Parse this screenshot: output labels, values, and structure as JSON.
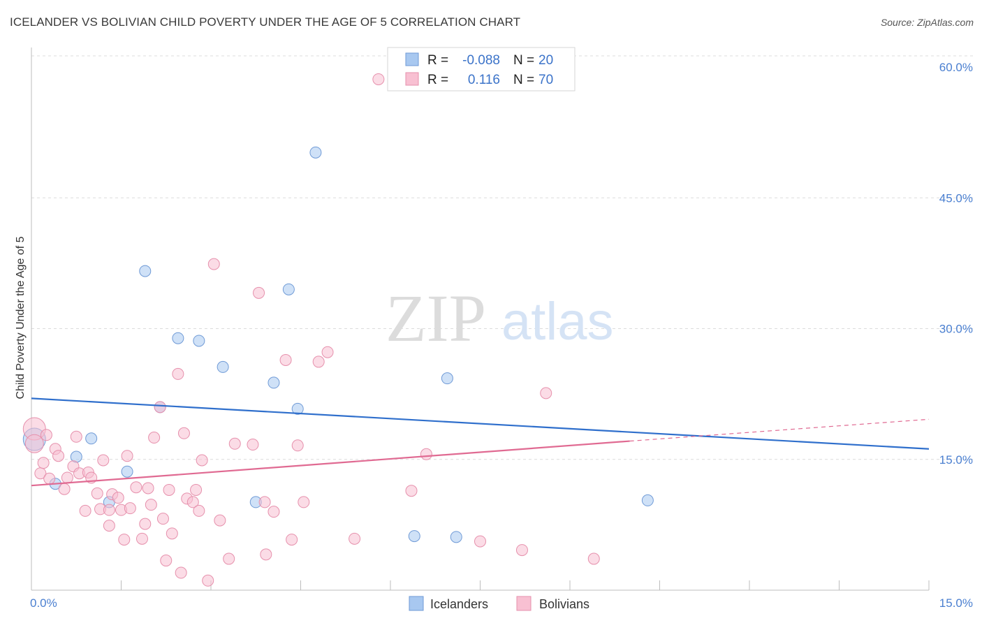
{
  "title": "ICELANDER VS BOLIVIAN CHILD POVERTY UNDER THE AGE OF 5 CORRELATION CHART",
  "source": "Source: ZipAtlas.com",
  "watermark": {
    "zip": "ZIP",
    "atlas": "atlas"
  },
  "legend": {
    "rows": [
      {
        "r_label": "R =",
        "r_value": "-0.088",
        "n_label": "N =",
        "n_value": "20",
        "color": "#a8c8f0",
        "stroke": "#6f9ad6"
      },
      {
        "r_label": "R =",
        "r_value": "0.116",
        "n_label": "N =",
        "n_value": "70",
        "color": "#f8c0d2",
        "stroke": "#e690ac"
      }
    ]
  },
  "bottom_legend": [
    "Icelanders",
    "Bolivians"
  ],
  "chart_data": {
    "type": "scatter",
    "title": "ICELANDER VS BOLIVIAN CHILD POVERTY UNDER THE AGE OF 5 CORRELATION CHART",
    "xlabel": "",
    "ylabel": "Child Poverty Under the Age of 5",
    "xlim": [
      0,
      15
    ],
    "ylim": [
      0,
      60
    ],
    "x_tick_labels": [
      "0.0%",
      "15.0%"
    ],
    "y_ticks": [
      15,
      30,
      45,
      60
    ],
    "y_tick_labels": [
      "15.0%",
      "30.0%",
      "45.0%",
      "60.0%"
    ],
    "grid": true,
    "legend_position": "top-center",
    "series": [
      {
        "name": "Icelanders",
        "color": "#a8c8f0",
        "stroke": "#6f9ad6",
        "line_color": "#2f6fcc",
        "trend": {
          "x": [
            0,
            15
          ],
          "y": [
            22.0,
            16.2
          ]
        },
        "points": [
          [
            0.05,
            17.3,
            3
          ],
          [
            0.4,
            12.2,
            1
          ],
          [
            0.75,
            15.3,
            1
          ],
          [
            1.0,
            17.4,
            1
          ],
          [
            1.3,
            10.1,
            1
          ],
          [
            1.6,
            13.6,
            1
          ],
          [
            1.9,
            36.6,
            1
          ],
          [
            2.15,
            21.0,
            1
          ],
          [
            2.45,
            28.9,
            1
          ],
          [
            2.8,
            28.6,
            1
          ],
          [
            3.2,
            25.6,
            1
          ],
          [
            3.75,
            10.1,
            1
          ],
          [
            4.05,
            23.8,
            1
          ],
          [
            4.3,
            34.5,
            1
          ],
          [
            4.45,
            20.8,
            1
          ],
          [
            4.75,
            50.2,
            1
          ],
          [
            6.4,
            6.2,
            1
          ],
          [
            6.95,
            24.3,
            1
          ],
          [
            7.1,
            6.1,
            1
          ],
          [
            10.3,
            10.3,
            1
          ]
        ]
      },
      {
        "name": "Bolivians",
        "color": "#f8c0d2",
        "stroke": "#e690ac",
        "line_color": "#e06a92",
        "trend": {
          "x": [
            0,
            10.0
          ],
          "y": [
            12.0,
            17.1
          ]
        },
        "trend_dashed": {
          "x": [
            10.0,
            15
          ],
          "y": [
            17.1,
            19.6
          ]
        },
        "points": [
          [
            0.05,
            18.5,
            3
          ],
          [
            0.05,
            16.8,
            2
          ],
          [
            0.15,
            13.4,
            1
          ],
          [
            0.2,
            14.6,
            1
          ],
          [
            0.25,
            17.8,
            1
          ],
          [
            0.3,
            12.8,
            1
          ],
          [
            0.4,
            16.2,
            1
          ],
          [
            0.45,
            15.4,
            1
          ],
          [
            0.55,
            11.6,
            1
          ],
          [
            0.6,
            12.9,
            1
          ],
          [
            0.7,
            14.2,
            1
          ],
          [
            0.75,
            17.6,
            1
          ],
          [
            0.8,
            13.4,
            1
          ],
          [
            0.9,
            9.1,
            1
          ],
          [
            0.95,
            13.5,
            1
          ],
          [
            1.0,
            12.9,
            1
          ],
          [
            1.1,
            11.1,
            1
          ],
          [
            1.15,
            9.3,
            1
          ],
          [
            1.2,
            14.9,
            1
          ],
          [
            1.3,
            7.4,
            1
          ],
          [
            1.35,
            11.0,
            1
          ],
          [
            1.45,
            10.6,
            1
          ],
          [
            1.5,
            9.2,
            1
          ],
          [
            1.55,
            5.8,
            1
          ],
          [
            1.6,
            15.4,
            1
          ],
          [
            1.65,
            9.4,
            1
          ],
          [
            1.75,
            11.8,
            1
          ],
          [
            1.85,
            5.9,
            1
          ],
          [
            1.9,
            7.6,
            1
          ],
          [
            1.95,
            11.7,
            1
          ],
          [
            2.0,
            9.8,
            1
          ],
          [
            2.05,
            17.5,
            1
          ],
          [
            2.15,
            21.0,
            1
          ],
          [
            2.2,
            8.2,
            1
          ],
          [
            2.25,
            3.4,
            1
          ],
          [
            2.3,
            11.5,
            1
          ],
          [
            2.35,
            6.5,
            1
          ],
          [
            2.45,
            24.8,
            1
          ],
          [
            2.5,
            2.0,
            1
          ],
          [
            2.55,
            18.0,
            1
          ],
          [
            2.6,
            10.5,
            1
          ],
          [
            2.7,
            10.1,
            1
          ],
          [
            2.75,
            11.5,
            1
          ],
          [
            2.8,
            9.1,
            1
          ],
          [
            2.85,
            14.9,
            1
          ],
          [
            2.95,
            1.1,
            1
          ],
          [
            3.05,
            37.4,
            1
          ],
          [
            3.15,
            8.0,
            1
          ],
          [
            3.3,
            3.6,
            1
          ],
          [
            3.4,
            16.8,
            1
          ],
          [
            3.7,
            16.7,
            1
          ],
          [
            3.8,
            34.1,
            1
          ],
          [
            3.9,
            10.1,
            1
          ],
          [
            3.92,
            4.1,
            1
          ],
          [
            4.05,
            9.0,
            1
          ],
          [
            4.25,
            26.4,
            1
          ],
          [
            4.35,
            5.8,
            1
          ],
          [
            4.45,
            16.6,
            1
          ],
          [
            4.55,
            10.1,
            1
          ],
          [
            4.8,
            26.2,
            1
          ],
          [
            4.95,
            27.3,
            1
          ],
          [
            5.4,
            5.9,
            1
          ],
          [
            5.8,
            58.6,
            1
          ],
          [
            6.35,
            11.4,
            1
          ],
          [
            6.6,
            15.6,
            1
          ],
          [
            7.5,
            5.6,
            1
          ],
          [
            8.2,
            4.6,
            1
          ],
          [
            8.6,
            22.6,
            1
          ],
          [
            9.4,
            3.6,
            1
          ],
          [
            1.3,
            9.2,
            1
          ]
        ]
      }
    ]
  }
}
